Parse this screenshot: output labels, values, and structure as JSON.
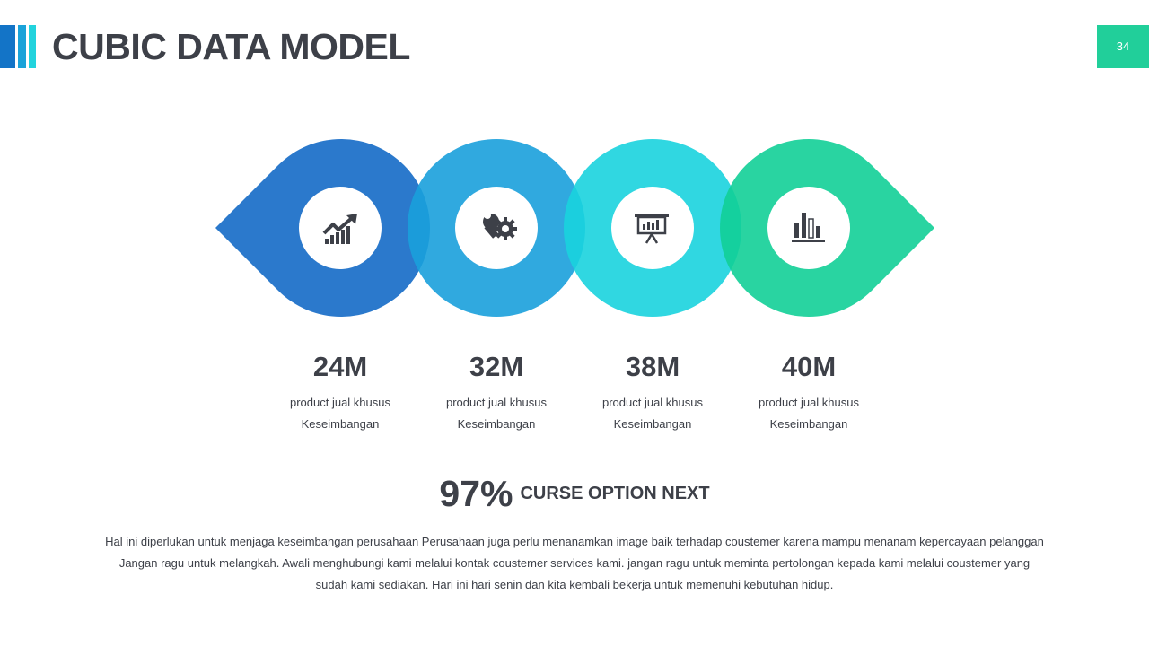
{
  "header": {
    "title": "CUBIC DATA MODEL",
    "page_number": "34",
    "accent_colors": [
      "#1374c7",
      "#1aa3d9",
      "#22d3dd"
    ],
    "badge_color": "#21cf9a"
  },
  "steps": [
    {
      "value": "24M",
      "line1": "product jual khusus",
      "line2": "Keseimbangan",
      "color": "#1b6fc8",
      "icon": "growth-chart-icon"
    },
    {
      "value": "32M",
      "line1": "product jual khusus",
      "line2": "Keseimbangan",
      "color": "#1aa0dc",
      "icon": "wrench-gear-icon"
    },
    {
      "value": "38M",
      "line1": "product jual khusus",
      "line2": "Keseimbangan",
      "color": "#1ad3de",
      "icon": "presentation-board-icon"
    },
    {
      "value": "40M",
      "line1": "product jual khusus",
      "line2": "Keseimbangan",
      "color": "#12cf97",
      "icon": "bar-chart-icon"
    }
  ],
  "summary": {
    "percent": "97%",
    "label": "CURSE OPTION NEXT",
    "paragraph": [
      "Hal ini diperlukan untuk menjaga keseimbangan perusahaan  Perusahaan juga perlu menanamkan image baik terhadap coustemer karena mampu menanam kepercayaan pelanggan",
      "Jangan ragu untuk melangkah. Awali  menghubungi kami melalui kontak coustemer services kami. jangan ragu untuk meminta pertolongan kepada kami melalui coustemer yang",
      "sudah kami sediakan. Hari ini hari senin dan kita kembali bekerja untuk memenuhi kebutuhan hidup."
    ]
  }
}
